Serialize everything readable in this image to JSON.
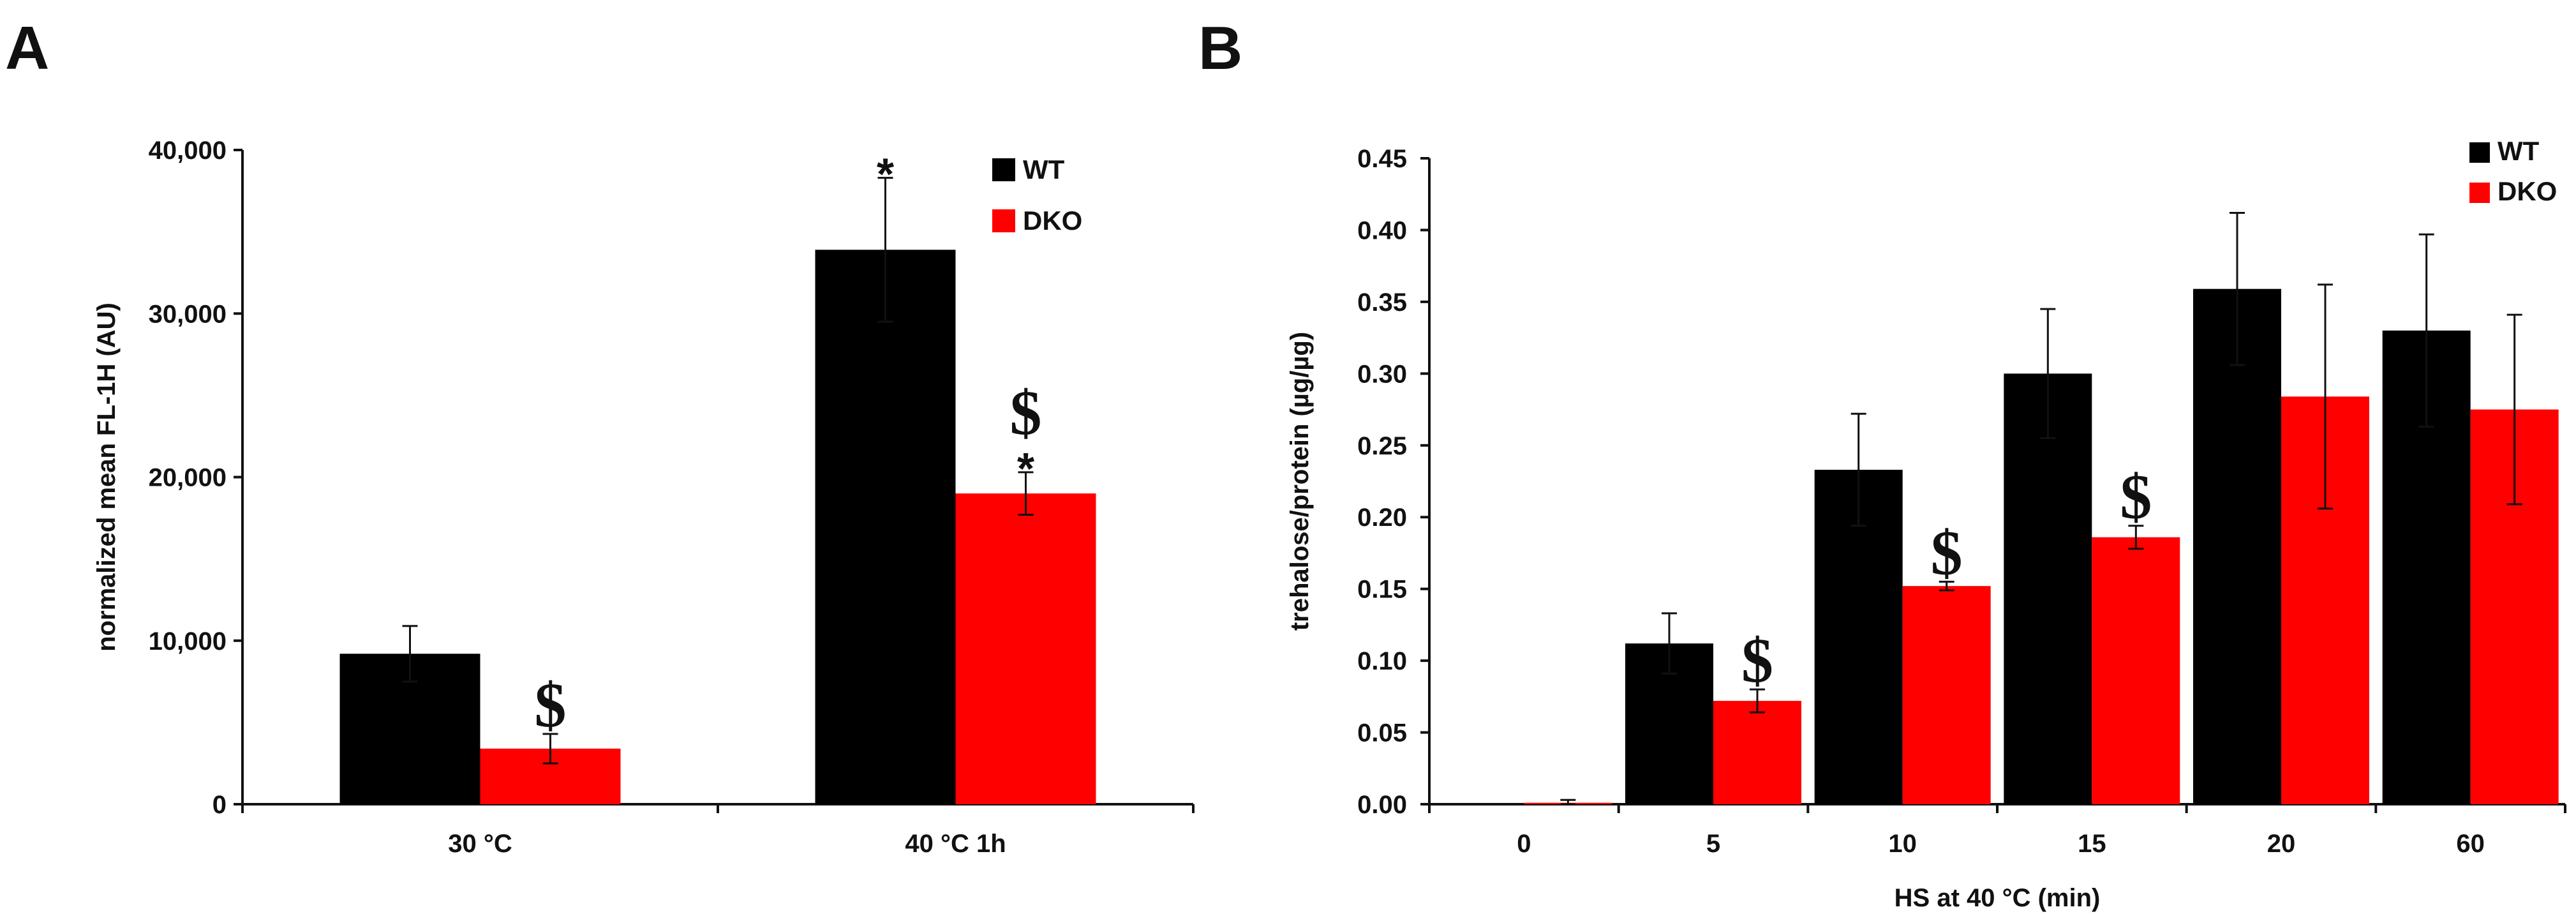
{
  "chart_data": [
    {
      "panel": "A",
      "type": "bar",
      "categories": [
        "30 °C",
        "40 °C 1h"
      ],
      "series": [
        {
          "name": "WT",
          "color": "#000000",
          "values": [
            9200,
            33900
          ],
          "errors": [
            1700,
            4400
          ]
        },
        {
          "name": "DKO",
          "color": "#ff0000",
          "values": [
            3400,
            19000
          ],
          "errors": [
            900,
            1300
          ]
        }
      ],
      "ylabel": "normalized mean FL-1H (AU)",
      "xlabel": "",
      "ylim": [
        0,
        40000
      ],
      "yticks": [
        "0",
        "10,000",
        "20,000",
        "30,000",
        "40,000"
      ],
      "ytick_values": [
        0,
        10000,
        20000,
        30000,
        40000
      ],
      "legend": [
        "WT",
        "DKO"
      ],
      "legend_position": "top-right",
      "annotations": [
        {
          "category": 0,
          "series": 1,
          "symbols": [
            "$"
          ]
        },
        {
          "category": 1,
          "series": 0,
          "symbols": [
            "*"
          ]
        },
        {
          "category": 1,
          "series": 1,
          "symbols": [
            "$",
            "*"
          ]
        }
      ]
    },
    {
      "panel": "B",
      "type": "bar",
      "categories": [
        "0",
        "5",
        "10",
        "15",
        "20",
        "60"
      ],
      "series": [
        {
          "name": "WT",
          "color": "#000000",
          "values": [
            0.0,
            0.112,
            0.233,
            0.3,
            0.359,
            0.33
          ],
          "errors": [
            0.0,
            0.021,
            0.039,
            0.045,
            0.053,
            0.067
          ]
        },
        {
          "name": "DKO",
          "color": "#ff0000",
          "values": [
            0.001,
            0.072,
            0.152,
            0.186,
            0.284,
            0.275
          ],
          "errors": [
            0.002,
            0.008,
            0.003,
            0.008,
            0.078,
            0.066
          ]
        }
      ],
      "ylabel": "trehalose/protein (µg/µg)",
      "xlabel": "HS at 40 °C (min)",
      "ylim": [
        0,
        0.45
      ],
      "yticks": [
        "0.00",
        "0.05",
        "0.10",
        "0.15",
        "0.20",
        "0.25",
        "0.30",
        "0.35",
        "0.40",
        "0.45"
      ],
      "ytick_values": [
        0,
        0.05,
        0.1,
        0.15,
        0.2,
        0.25,
        0.3,
        0.35,
        0.4,
        0.45
      ],
      "legend": [
        "WT",
        "DKO"
      ],
      "legend_position": "top-right",
      "annotations": [
        {
          "category": 1,
          "series": 1,
          "symbols": [
            "$"
          ]
        },
        {
          "category": 2,
          "series": 1,
          "symbols": [
            "$"
          ]
        },
        {
          "category": 3,
          "series": 1,
          "symbols": [
            "$"
          ]
        }
      ]
    }
  ],
  "panel_labels": [
    "A",
    "B"
  ]
}
